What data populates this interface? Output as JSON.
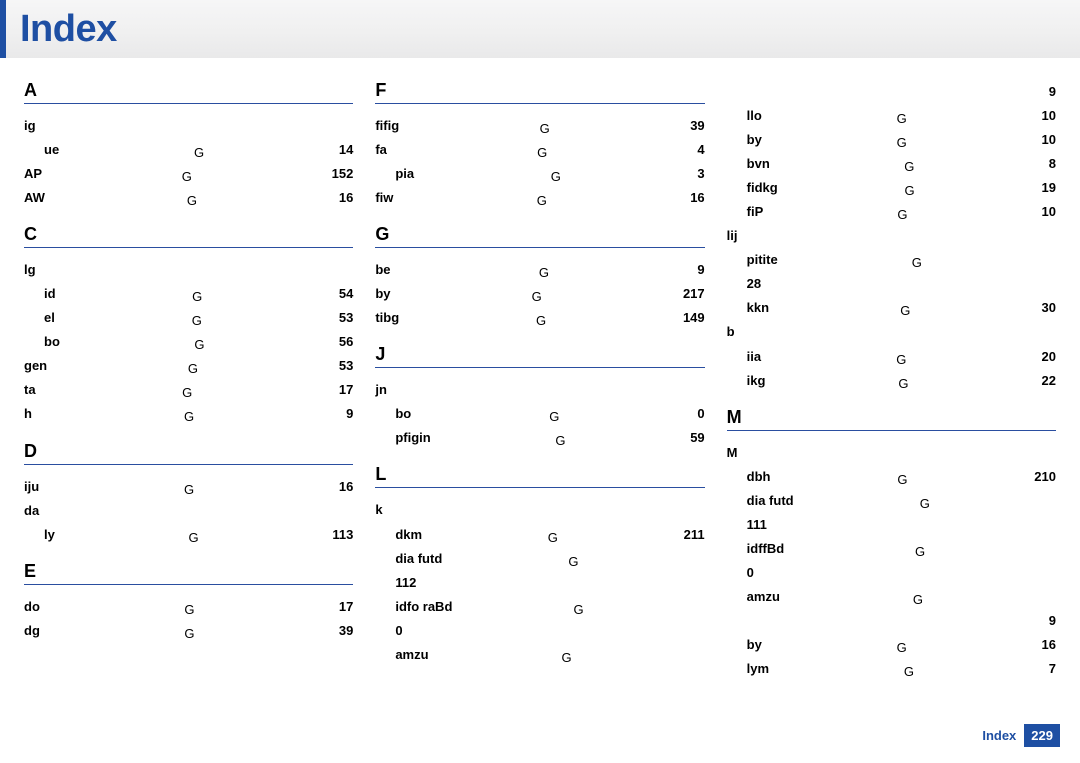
{
  "title": "Index",
  "footer": {
    "label": "Index",
    "page": "229"
  },
  "columns": [
    [
      {
        "type": "letter",
        "text": "A"
      },
      {
        "label": "ig",
        "page": "",
        "noFill": true
      },
      {
        "label": "ue",
        "page": "14",
        "indent": 1
      },
      {
        "label": "AP",
        "page": "152"
      },
      {
        "label": "AW",
        "page": "16"
      },
      {
        "type": "letter",
        "text": "C"
      },
      {
        "label": "lg",
        "page": "",
        "noFill": true
      },
      {
        "label": "id",
        "page": "54",
        "indent": 1
      },
      {
        "label": "el",
        "page": "53",
        "indent": 1
      },
      {
        "label": "bo",
        "page": "56",
        "indent": 1
      },
      {
        "label": "gen",
        "page": "53"
      },
      {
        "label": "ta",
        "page": "17"
      },
      {
        "label": "h",
        "page": "9"
      },
      {
        "type": "letter",
        "text": "D"
      },
      {
        "label": "iju",
        "page": "16"
      },
      {
        "label": "da",
        "page": "",
        "noFill": true
      },
      {
        "label": "ly",
        "page": "113",
        "indent": 1
      },
      {
        "type": "letter",
        "text": "E"
      },
      {
        "label": "do",
        "page": "17"
      },
      {
        "label": "dg",
        "page": "39"
      }
    ],
    [
      {
        "type": "letter",
        "text": "F"
      },
      {
        "label": "fifig",
        "page": "39"
      },
      {
        "label": "fa",
        "page": "4"
      },
      {
        "label": "pia",
        "page": "3",
        "indent": 1
      },
      {
        "label": "fiw",
        "page": "16"
      },
      {
        "type": "letter",
        "text": "G"
      },
      {
        "label": "be",
        "page": "9"
      },
      {
        "label": "by",
        "page": "217"
      },
      {
        "label": "tibg",
        "page": "149"
      },
      {
        "type": "letter",
        "text": "J"
      },
      {
        "label": "jn",
        "page": "",
        "noFill": true
      },
      {
        "label": "bo",
        "page": "0",
        "indent": 1
      },
      {
        "label": "pfigin",
        "page": "59",
        "indent": 1
      },
      {
        "type": "letter",
        "text": "L"
      },
      {
        "label": "k",
        "page": "",
        "noFill": true
      },
      {
        "label": "dkm",
        "page": "211",
        "indent": 1
      },
      {
        "label": "dia                     futd",
        "page": "",
        "indent": 1
      },
      {
        "label": "112",
        "page": "",
        "indent": 1,
        "noFill": true
      },
      {
        "label": "idfo               raBd",
        "page": "",
        "indent": 1
      },
      {
        "label": "0",
        "page": "",
        "indent": 1,
        "noFill": true
      },
      {
        "label": "amzu",
        "page": "",
        "indent": 1
      }
    ],
    [
      {
        "label": "",
        "page": "9",
        "noFill": true
      },
      {
        "label": "llo",
        "page": "10",
        "indent": 1
      },
      {
        "label": "by",
        "page": "10",
        "indent": 1
      },
      {
        "label": "bvn",
        "page": "8",
        "indent": 1
      },
      {
        "label": "fidkg",
        "page": "19",
        "indent": 1
      },
      {
        "label": "fiP",
        "page": "10",
        "indent": 1
      },
      {
        "label": "lij",
        "page": "",
        "noFill": true
      },
      {
        "label": "pitite",
        "page": "",
        "indent": 1
      },
      {
        "label": "28",
        "page": "",
        "indent": 1,
        "noFill": true
      },
      {
        "label": "kkn",
        "page": "30",
        "indent": 1
      },
      {
        "label": "b",
        "page": "",
        "noFill": true
      },
      {
        "label": "iia",
        "page": "20",
        "indent": 1
      },
      {
        "label": "ikg",
        "page": "22",
        "indent": 1
      },
      {
        "type": "letter",
        "text": "M"
      },
      {
        "label": "M",
        "page": "",
        "noFill": true
      },
      {
        "label": "dbh",
        "page": "210",
        "indent": 1
      },
      {
        "label": "dia                     futd",
        "page": "",
        "indent": 1
      },
      {
        "label": "111",
        "page": "",
        "indent": 1,
        "noFill": true
      },
      {
        "label": "idffBd",
        "page": "",
        "indent": 1
      },
      {
        "label": "0",
        "page": "",
        "indent": 1,
        "noFill": true
      },
      {
        "label": "amzu",
        "page": "",
        "indent": 1
      },
      {
        "label": "",
        "page": "9",
        "indent": 1,
        "noFill": true
      },
      {
        "label": "by",
        "page": "16",
        "indent": 1
      },
      {
        "label": "lym",
        "page": "7",
        "indent": 1
      }
    ]
  ]
}
